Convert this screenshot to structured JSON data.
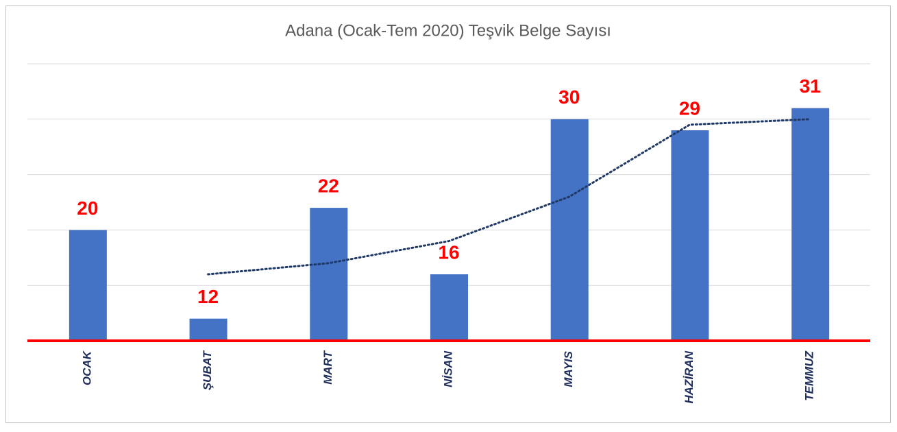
{
  "chart_data": {
    "type": "bar",
    "title": "Adana (Ocak-Tem 2020) Teşvik Belge Sayısı",
    "categories": [
      "OCAK",
      "ŞUBAT",
      "MART",
      "NİSAN",
      "MAYIS",
      "HAZİRAN",
      "TEMMUZ"
    ],
    "values": [
      20,
      12,
      22,
      16,
      30,
      29,
      31
    ],
    "color": "#4472c4",
    "value_label_color": "#ff0000",
    "axis_color": "#ff0000",
    "category_label_color": "#1f2d5c",
    "trendline": {
      "color": "#1f3864",
      "values": [
        null,
        16,
        17,
        19,
        23,
        29.5,
        30
      ]
    },
    "ylim": [
      10,
      35
    ],
    "yticks": [
      10,
      15,
      20,
      25,
      30,
      35
    ],
    "grid": true
  }
}
